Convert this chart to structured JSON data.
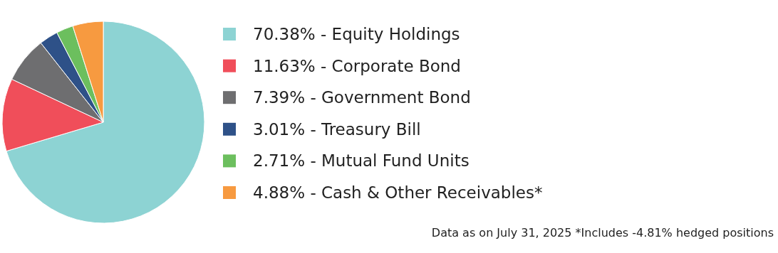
{
  "chart_data": {
    "type": "pie",
    "categories": [
      "70.38% - Equity Holdings",
      "11.63% - Corporate Bond",
      "7.39% - Government Bond",
      "3.01% - Treasury Bill",
      "2.71% - Mutual Fund Units",
      "4.88% - Cash & Other Receivables*"
    ],
    "values": [
      70.38,
      11.63,
      7.39,
      3.01,
      2.71,
      4.88
    ],
    "colors": [
      "#8dd3d3",
      "#f04e5a",
      "#6e6e70",
      "#2e5188",
      "#6cbf5e",
      "#f79a40"
    ],
    "legend": "right",
    "annotations": [
      "Data as on July 31, 2025 *Includes -4.81% hedged positions"
    ]
  }
}
